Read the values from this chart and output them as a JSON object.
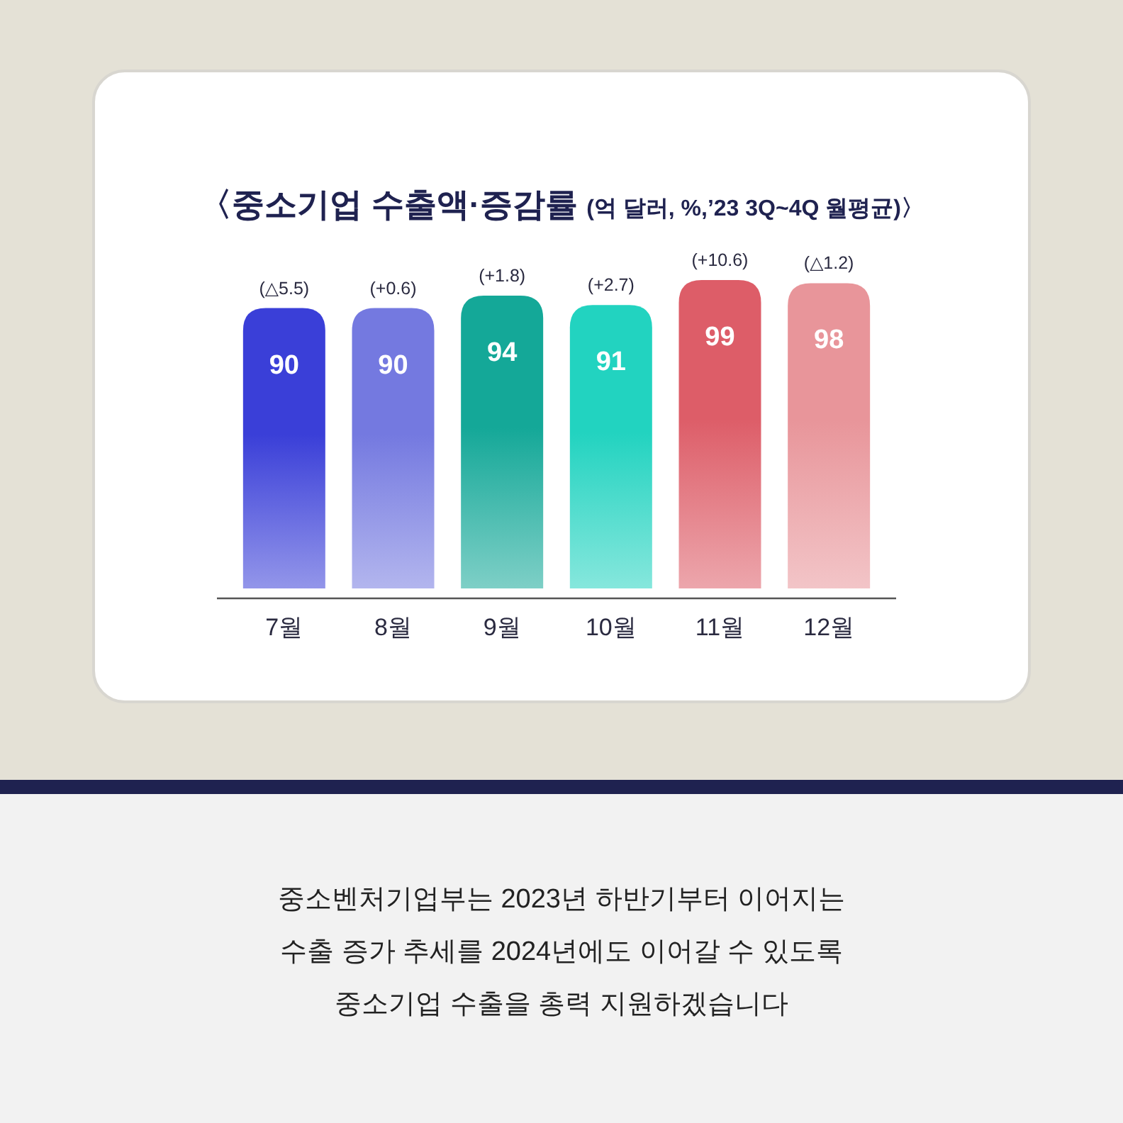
{
  "chart_data": {
    "type": "bar",
    "title": "〈중소기업 수출액·증감률",
    "subtitle": "(억 달러, %,’23 3Q~4Q 월평균)〉",
    "categories": [
      "7월",
      "8월",
      "9월",
      "10월",
      "11월",
      "12월"
    ],
    "values": [
      90,
      90,
      94,
      91,
      99,
      98
    ],
    "colors": [
      "#3a3fd8",
      "#7479e0",
      "#14a898",
      "#22d3c0",
      "#dd5d68",
      "#e8959a"
    ],
    "data_labels": true,
    "annotations": [
      {
        "text": "(△5.5)",
        "x": "7월",
        "y": 90
      },
      {
        "text": "(+0.6)",
        "x": "8월",
        "y": 90
      },
      {
        "text": "(+1.8)",
        "x": "9월",
        "y": 94
      },
      {
        "text": "(+2.7)",
        "x": "10월",
        "y": 91
      },
      {
        "text": "(+10.6)",
        "x": "11월",
        "y": 99
      },
      {
        "text": "(△1.2)",
        "x": "12월",
        "y": 98
      },
      "중소벤처기업부는 2023년 하반기부터 이어지는",
      "수출 증가 추세를 2024년에도 이어갈 수 있도록",
      "중소기업 수출을 총력 지원하겠습니다"
    ]
  }
}
